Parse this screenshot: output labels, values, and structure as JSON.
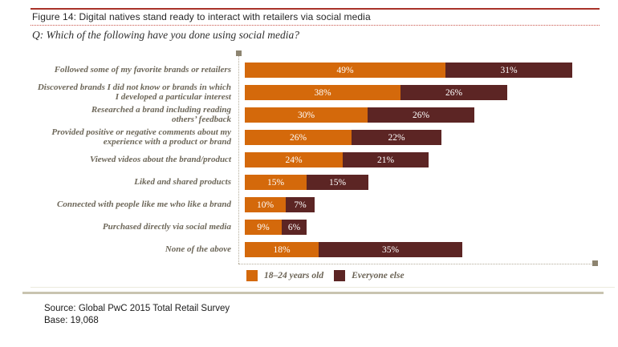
{
  "header": {
    "figure_title": "Figure 14: Digital natives stand ready to interact with retailers via social media",
    "question": "Q: Which of the following have you done using social media?"
  },
  "chart_data": {
    "type": "bar",
    "orientation": "horizontal",
    "stacked": true,
    "title": "Figure 14: Digital natives stand ready to interact with retailers via social media",
    "question": "Q: Which of the following have you done using social media?",
    "categories": [
      "Followed some of my favorite brands or retailers",
      "Discovered brands I did not know or brands in which\nI developed a particular interest",
      "Researched a brand including reading\nothers’ feedback",
      "Provided positive or negative comments about my\nexperience with a product or brand",
      "Viewed videos about the brand/product",
      "Liked and shared products",
      "Connected with people like me who like a brand",
      "Purchased directly via social media",
      "None of the above"
    ],
    "series": [
      {
        "name": "18–24 years old",
        "key": "18-24-years-old",
        "color": "#d4690b",
        "values": [
          49,
          38,
          30,
          26,
          24,
          15,
          10,
          9,
          18
        ]
      },
      {
        "name": "Everyone else",
        "key": "everyone-else",
        "color": "#5c2524",
        "values": [
          31,
          26,
          26,
          22,
          21,
          15,
          7,
          6,
          35
        ]
      }
    ],
    "value_suffix": "%",
    "xlim": [
      0,
      87
    ],
    "legend_position": "bottom",
    "grid": false
  },
  "footer": {
    "source": "Source: Global PwC 2015 Total Retail Survey",
    "base": "Base: 19,068"
  },
  "colors": {
    "bar_orange": "#d4690b",
    "bar_maroon": "#5c2524",
    "header_rule_red": "#a93228",
    "title_dots_red": "#c9554b",
    "guide_dots": "#b3ab99",
    "guide_marker": "#8d8470",
    "category_text": "#6d6759",
    "footer_rule_beige": "#c9c4b0"
  }
}
